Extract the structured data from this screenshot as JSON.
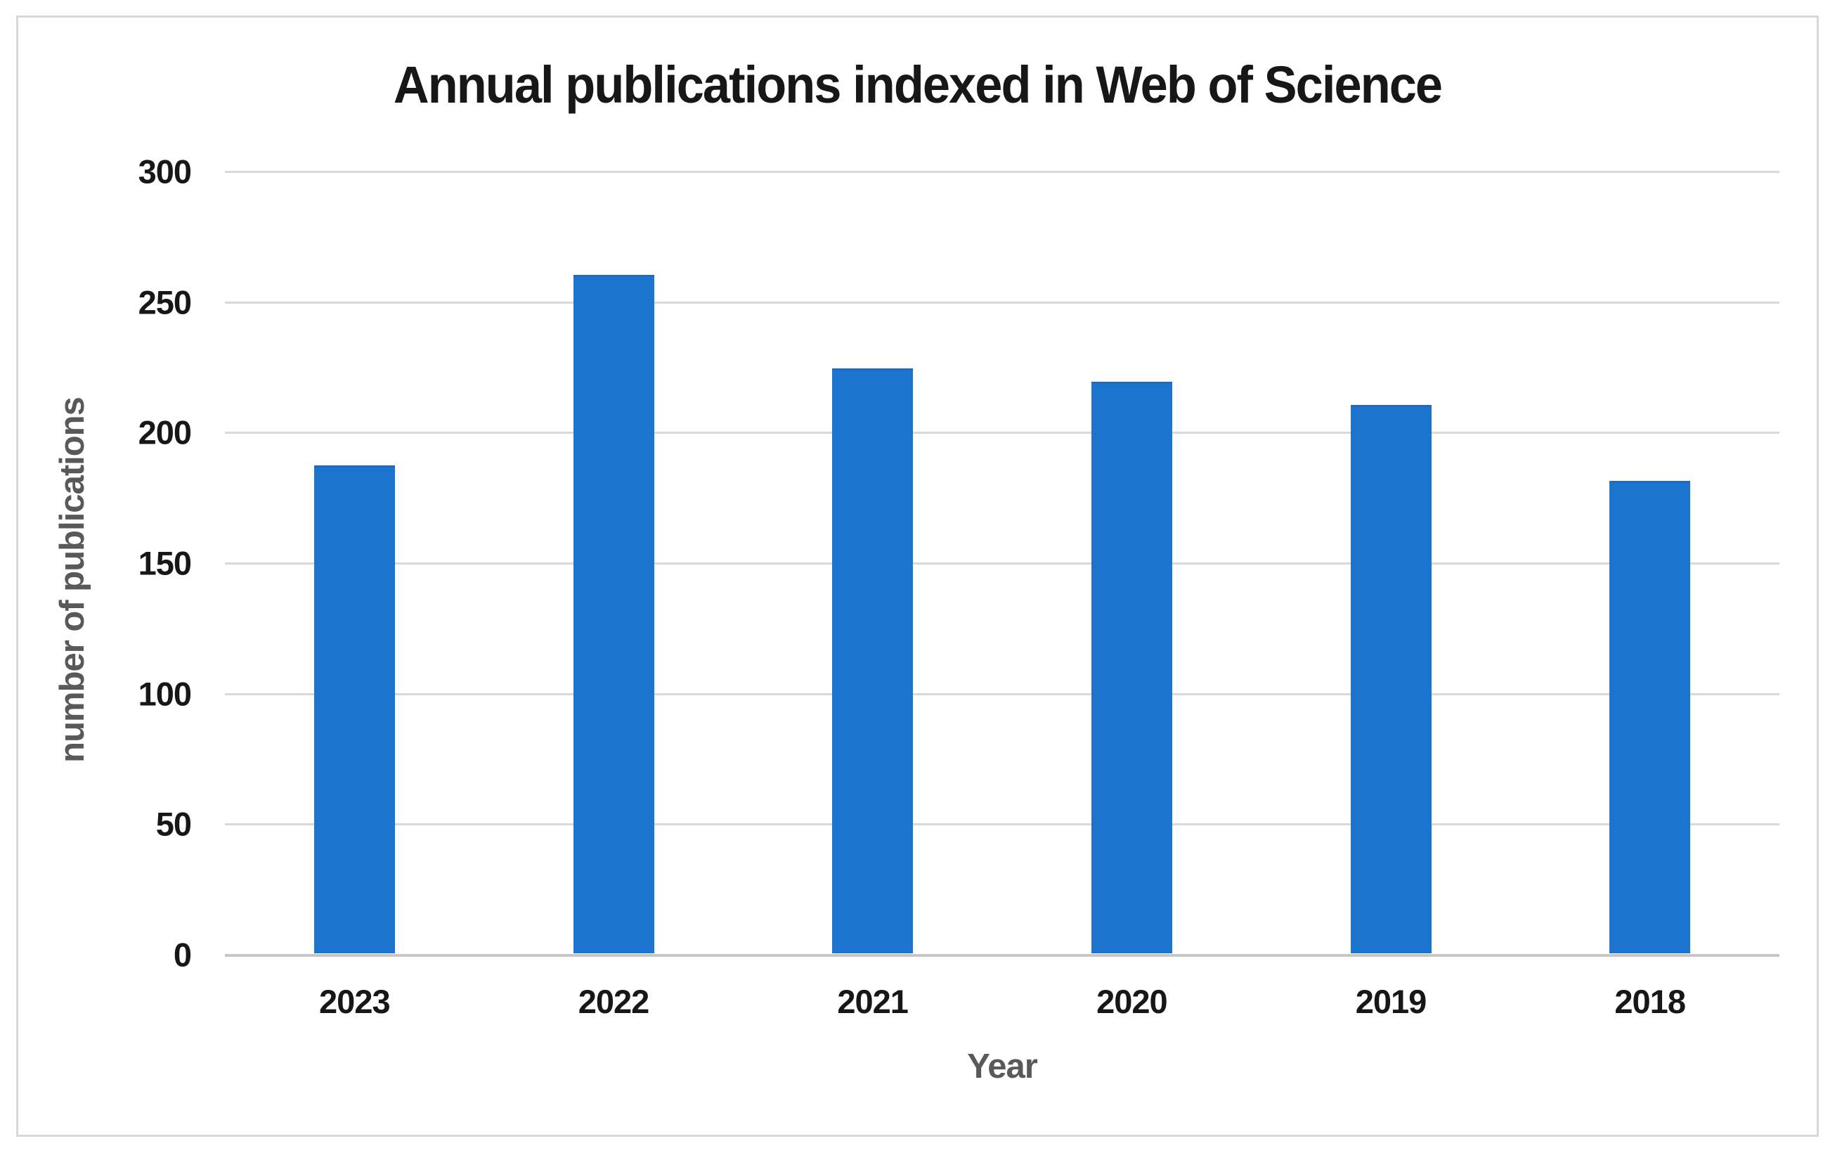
{
  "chart_data": {
    "type": "bar",
    "title": "Annual publications indexed in Web of Science",
    "xlabel": "Year",
    "ylabel": "number of publications",
    "categories": [
      "2023",
      "2022",
      "2021",
      "2020",
      "2019",
      "2018"
    ],
    "values": [
      187,
      260,
      224,
      219,
      210,
      181
    ],
    "ylim": [
      0,
      300
    ],
    "yticks": [
      300,
      250,
      200,
      150,
      100,
      50,
      0
    ],
    "grid": true,
    "legend": "none",
    "bar_color": "#1B74CE"
  },
  "colors": {
    "accent": "#1B74CE",
    "gridline": "#d9d9d9",
    "axis_line": "#c6c6c6",
    "text_primary": "#171717",
    "text_secondary": "#595959",
    "frame_border": "#d8d8d8",
    "background": "#ffffff"
  }
}
